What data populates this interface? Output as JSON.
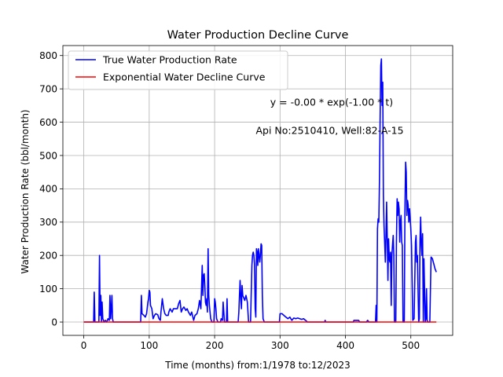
{
  "chart_data": {
    "type": "line",
    "title": "Water Production Decline Curve",
    "xlabel": "Time (months) from:1/1978 to:12/2023",
    "ylabel": "Water Production Rate (bbl/month)",
    "xlim": [
      -32,
      564
    ],
    "ylim": [
      -40,
      830
    ],
    "xticks": [
      0,
      100,
      200,
      300,
      400,
      500
    ],
    "yticks": [
      0,
      100,
      200,
      300,
      400,
      500,
      600,
      700,
      800
    ],
    "grid": true,
    "legend_position": "top-left",
    "annotations": [
      {
        "text": "y = -0.00 * exp(-1.00 * t)",
        "x": 285,
        "y": 650
      },
      {
        "text": "Api No:2510410, Well:82-A-15",
        "x": 263,
        "y": 565
      }
    ],
    "series": [
      {
        "name": "True Water Production Rate",
        "color": "#0000ff",
        "points": [
          [
            0,
            0
          ],
          [
            15,
            0
          ],
          [
            16,
            90
          ],
          [
            17,
            0
          ],
          [
            23,
            0
          ],
          [
            24,
            200
          ],
          [
            25,
            20
          ],
          [
            26,
            80
          ],
          [
            27,
            0
          ],
          [
            28,
            60
          ],
          [
            29,
            10
          ],
          [
            31,
            0
          ],
          [
            33,
            5
          ],
          [
            35,
            0
          ],
          [
            37,
            10
          ],
          [
            39,
            5
          ],
          [
            40,
            80
          ],
          [
            41,
            10
          ],
          [
            42,
            40
          ],
          [
            43,
            80
          ],
          [
            44,
            10
          ],
          [
            45,
            0
          ],
          [
            87,
            0
          ],
          [
            88,
            80
          ],
          [
            89,
            25
          ],
          [
            92,
            20
          ],
          [
            94,
            15
          ],
          [
            96,
            25
          ],
          [
            98,
            60
          ],
          [
            99,
            70
          ],
          [
            100,
            95
          ],
          [
            101,
            90
          ],
          [
            102,
            50
          ],
          [
            104,
            40
          ],
          [
            106,
            10
          ],
          [
            108,
            20
          ],
          [
            110,
            25
          ],
          [
            113,
            22
          ],
          [
            115,
            10
          ],
          [
            117,
            5
          ],
          [
            118,
            30
          ],
          [
            120,
            70
          ],
          [
            122,
            40
          ],
          [
            124,
            25
          ],
          [
            126,
            20
          ],
          [
            129,
            20
          ],
          [
            130,
            30
          ],
          [
            132,
            40
          ],
          [
            135,
            30
          ],
          [
            137,
            40
          ],
          [
            140,
            40
          ],
          [
            143,
            40
          ],
          [
            145,
            55
          ],
          [
            147,
            65
          ],
          [
            149,
            30
          ],
          [
            151,
            40
          ],
          [
            153,
            45
          ],
          [
            156,
            35
          ],
          [
            158,
            40
          ],
          [
            160,
            30
          ],
          [
            163,
            20
          ],
          [
            165,
            30
          ],
          [
            168,
            5
          ],
          [
            170,
            20
          ],
          [
            173,
            25
          ],
          [
            175,
            40
          ],
          [
            177,
            65
          ],
          [
            179,
            40
          ],
          [
            181,
            170
          ],
          [
            182,
            80
          ],
          [
            183,
            140
          ],
          [
            184,
            145
          ],
          [
            185,
            110
          ],
          [
            186,
            60
          ],
          [
            187,
            50
          ],
          [
            188,
            70
          ],
          [
            189,
            30
          ],
          [
            190,
            220
          ],
          [
            191,
            80
          ],
          [
            192,
            50
          ],
          [
            194,
            10
          ],
          [
            196,
            0
          ],
          [
            199,
            0
          ],
          [
            200,
            70
          ],
          [
            201,
            60
          ],
          [
            202,
            40
          ],
          [
            203,
            10
          ],
          [
            205,
            0
          ],
          [
            209,
            0
          ],
          [
            210,
            10
          ],
          [
            212,
            5
          ],
          [
            213,
            60
          ],
          [
            215,
            0
          ],
          [
            218,
            0
          ],
          [
            219,
            70
          ],
          [
            220,
            0
          ],
          [
            236,
            0
          ],
          [
            237,
            30
          ],
          [
            238,
            80
          ],
          [
            239,
            125
          ],
          [
            240,
            70
          ],
          [
            241,
            40
          ],
          [
            242,
            110
          ],
          [
            243,
            80
          ],
          [
            244,
            75
          ],
          [
            246,
            65
          ],
          [
            248,
            80
          ],
          [
            250,
            60
          ],
          [
            252,
            0
          ],
          [
            255,
            0
          ],
          [
            257,
            170
          ],
          [
            258,
            200
          ],
          [
            259,
            210
          ],
          [
            260,
            200
          ],
          [
            261,
            175
          ],
          [
            262,
            40
          ],
          [
            263,
            15
          ],
          [
            264,
            220
          ],
          [
            265,
            210
          ],
          [
            266,
            170
          ],
          [
            267,
            220
          ],
          [
            268,
            200
          ],
          [
            269,
            180
          ],
          [
            270,
            200
          ],
          [
            271,
            235
          ],
          [
            272,
            230
          ],
          [
            273,
            80
          ],
          [
            274,
            10
          ],
          [
            276,
            0
          ],
          [
            299,
            0
          ],
          [
            300,
            25
          ],
          [
            303,
            25
          ],
          [
            306,
            20
          ],
          [
            309,
            15
          ],
          [
            312,
            10
          ],
          [
            315,
            15
          ],
          [
            318,
            5
          ],
          [
            321,
            12
          ],
          [
            324,
            10
          ],
          [
            327,
            12
          ],
          [
            330,
            10
          ],
          [
            333,
            8
          ],
          [
            336,
            10
          ],
          [
            339,
            5
          ],
          [
            342,
            0
          ],
          [
            368,
            0
          ],
          [
            369,
            5
          ],
          [
            370,
            0
          ],
          [
            412,
            0
          ],
          [
            413,
            5
          ],
          [
            420,
            5
          ],
          [
            422,
            0
          ],
          [
            432,
            0
          ],
          [
            434,
            5
          ],
          [
            436,
            0
          ],
          [
            446,
            0
          ],
          [
            447,
            50
          ],
          [
            448,
            0
          ],
          [
            449,
            280
          ],
          [
            450,
            310
          ],
          [
            451,
            300
          ],
          [
            452,
            420
          ],
          [
            453,
            600
          ],
          [
            454,
            770
          ],
          [
            455,
            790
          ],
          [
            456,
            650
          ],
          [
            457,
            720
          ],
          [
            458,
            380
          ],
          [
            459,
            290
          ],
          [
            460,
            240
          ],
          [
            461,
            180
          ],
          [
            462,
            260
          ],
          [
            463,
            360
          ],
          [
            464,
            240
          ],
          [
            465,
            125
          ],
          [
            466,
            250
          ],
          [
            467,
            190
          ],
          [
            468,
            180
          ],
          [
            469,
            210
          ],
          [
            470,
            50
          ],
          [
            471,
            200
          ],
          [
            472,
            230
          ],
          [
            473,
            260
          ],
          [
            474,
            200
          ],
          [
            475,
            0
          ],
          [
            477,
            0
          ],
          [
            478,
            240
          ],
          [
            479,
            370
          ],
          [
            480,
            320
          ],
          [
            481,
            360
          ],
          [
            482,
            340
          ],
          [
            483,
            240
          ],
          [
            484,
            300
          ],
          [
            485,
            320
          ],
          [
            486,
            240
          ],
          [
            487,
            230
          ],
          [
            488,
            0
          ],
          [
            490,
            0
          ],
          [
            491,
            330
          ],
          [
            492,
            480
          ],
          [
            493,
            450
          ],
          [
            494,
            320
          ],
          [
            495,
            365
          ],
          [
            496,
            350
          ],
          [
            497,
            300
          ],
          [
            498,
            340
          ],
          [
            499,
            310
          ],
          [
            500,
            280
          ],
          [
            501,
            230
          ],
          [
            502,
            120
          ],
          [
            503,
            5
          ],
          [
            505,
            10
          ],
          [
            507,
            240
          ],
          [
            508,
            260
          ],
          [
            509,
            180
          ],
          [
            510,
            200
          ],
          [
            511,
            100
          ],
          [
            512,
            0
          ],
          [
            513,
            10
          ],
          [
            514,
            240
          ],
          [
            515,
            315
          ],
          [
            516,
            230
          ],
          [
            517,
            200
          ],
          [
            518,
            265
          ],
          [
            519,
            0
          ],
          [
            520,
            190
          ],
          [
            521,
            100
          ],
          [
            522,
            0
          ],
          [
            523,
            10
          ],
          [
            524,
            100
          ],
          [
            525,
            5
          ],
          [
            526,
            0
          ],
          [
            529,
            0
          ],
          [
            530,
            100
          ],
          [
            531,
            195
          ],
          [
            533,
            190
          ],
          [
            535,
            175
          ],
          [
            537,
            160
          ],
          [
            539,
            150
          ]
        ]
      },
      {
        "name": "Exponential Water Decline Curve",
        "color": "#ff0000",
        "points": [
          [
            0,
            0
          ],
          [
            539,
            0
          ]
        ]
      }
    ]
  }
}
